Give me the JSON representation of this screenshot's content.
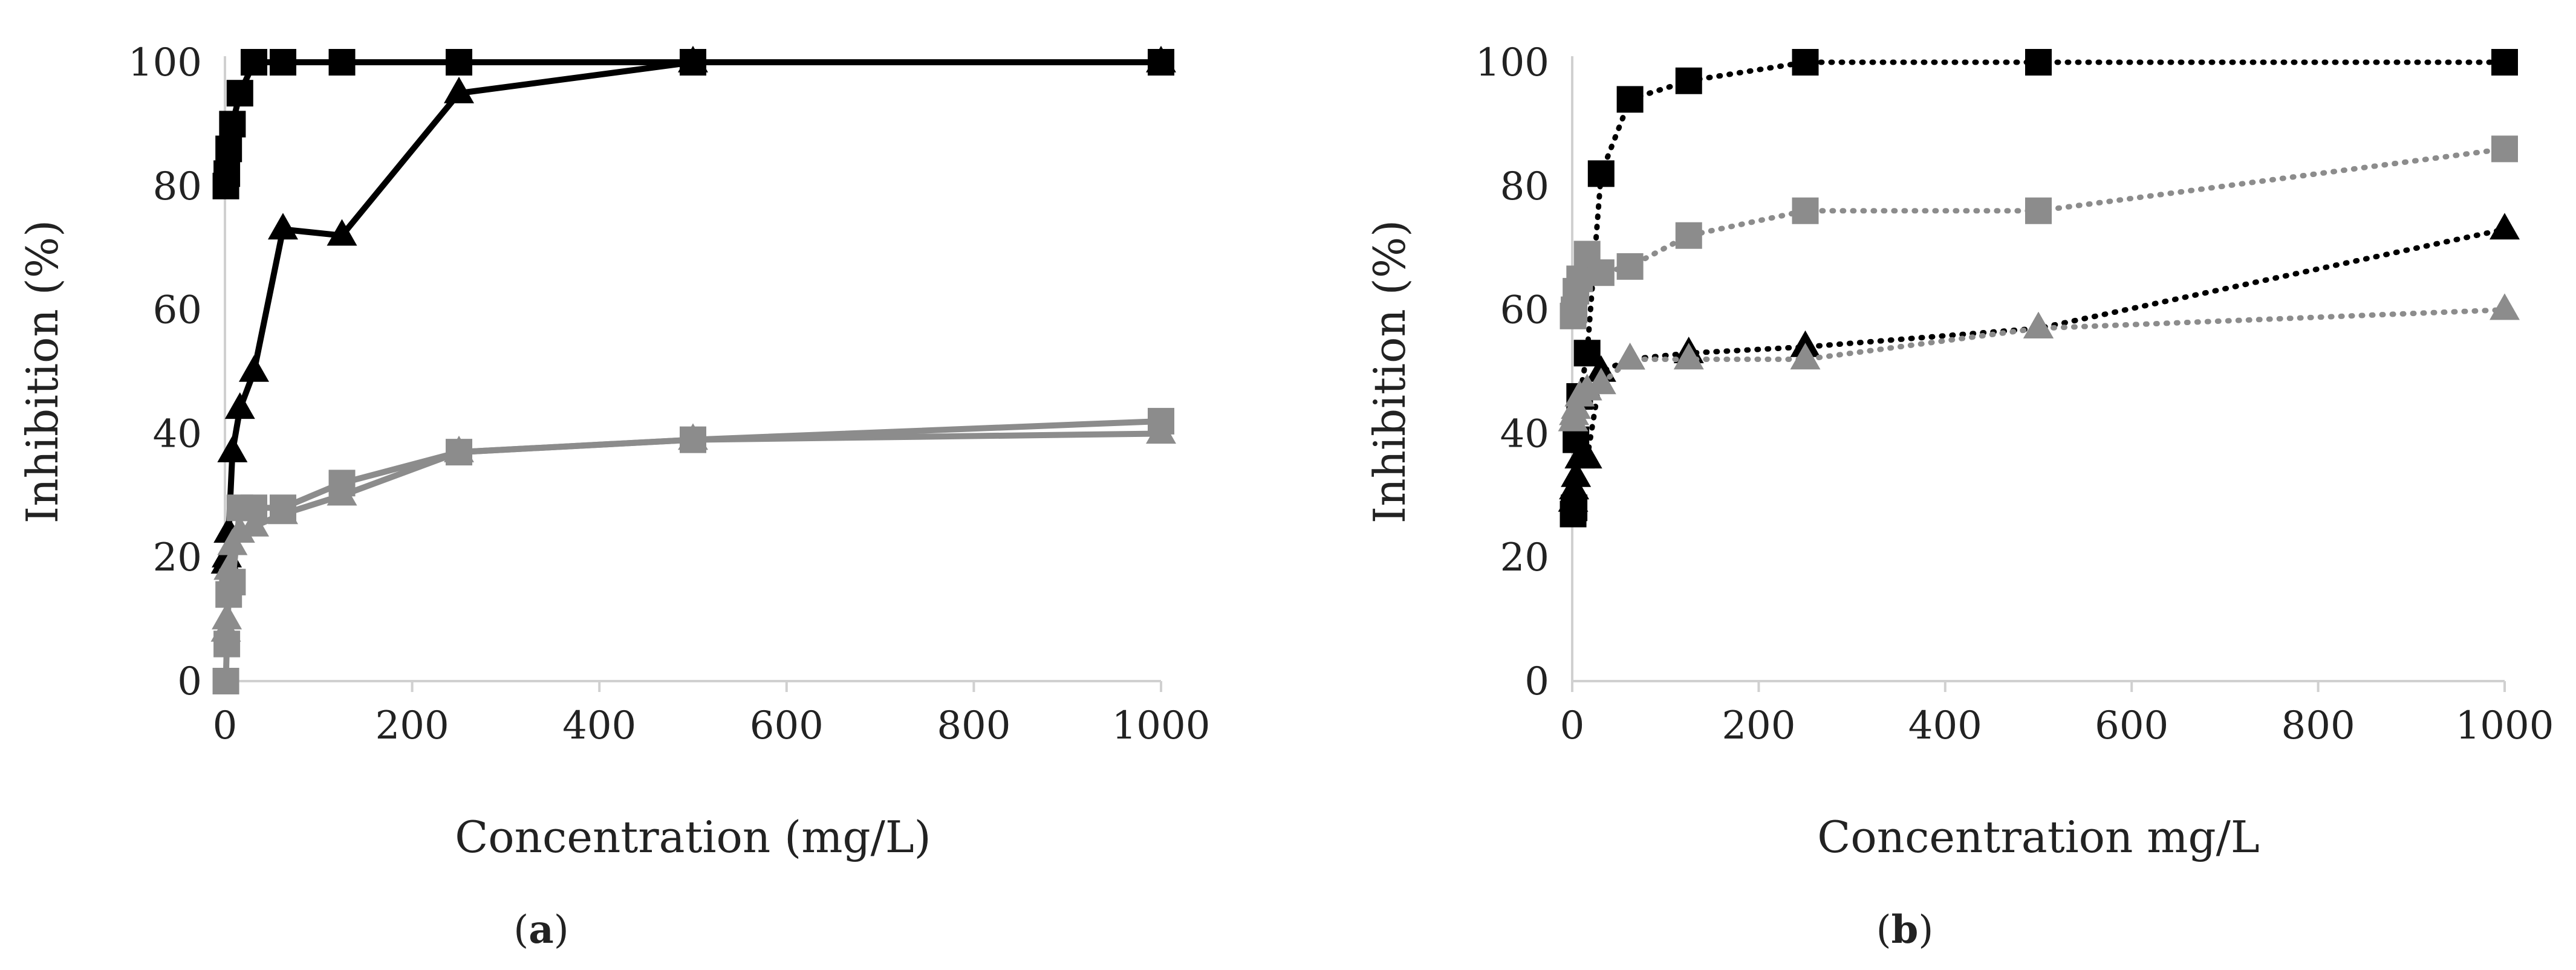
{
  "chart_data": [
    {
      "panel": "a",
      "type": "line",
      "label_prefix": "(",
      "label_letter": "a",
      "label_suffix": ")",
      "xlabel": "Concentration (mg/L)",
      "ylabel": "Inhibition (%)",
      "xlim": [
        0,
        1000
      ],
      "ylim": [
        0,
        100
      ],
      "xticks": [
        0,
        200,
        400,
        600,
        800,
        1000
      ],
      "yticks": [
        0,
        20,
        40,
        60,
        80,
        100
      ],
      "grid": false,
      "series": [
        {
          "name": "black-squares",
          "color": "#000000",
          "marker": "square",
          "dashed": false,
          "x": [
            1,
            2,
            4,
            8,
            16,
            31,
            62,
            125,
            250,
            500,
            1000
          ],
          "y": [
            80,
            82,
            86,
            90,
            95,
            100,
            100,
            100,
            100,
            100,
            100
          ]
        },
        {
          "name": "black-triangles",
          "color": "#000000",
          "marker": "triangle",
          "dashed": false,
          "x": [
            1,
            2,
            4,
            8,
            16,
            31,
            62,
            125,
            250,
            500,
            1000
          ],
          "y": [
            19,
            20,
            24,
            37,
            44,
            50,
            73,
            72,
            95,
            100,
            100
          ]
        },
        {
          "name": "gray-triangles",
          "color": "#8c8c8c",
          "marker": "triangle",
          "dashed": false,
          "x": [
            1,
            2,
            4,
            8,
            16,
            31,
            62,
            125,
            250,
            500,
            1000
          ],
          "y": [
            8,
            10,
            18,
            22,
            24,
            25,
            27,
            30,
            37,
            39,
            40
          ]
        },
        {
          "name": "gray-squares",
          "color": "#8c8c8c",
          "marker": "square",
          "dashed": false,
          "x": [
            1,
            2,
            4,
            8,
            16,
            31,
            62,
            125,
            250,
            500,
            1000
          ],
          "y": [
            0,
            6,
            14,
            16,
            28,
            28,
            28,
            32,
            37,
            39,
            42
          ]
        }
      ]
    },
    {
      "panel": "b",
      "type": "line",
      "label_prefix": "(",
      "label_letter": "b",
      "label_suffix": ")",
      "xlabel": "Concentration mg/L",
      "ylabel": "Inhibition (%)",
      "xlim": [
        0,
        1000
      ],
      "ylim": [
        0,
        100
      ],
      "xticks": [
        0,
        200,
        400,
        600,
        800,
        1000
      ],
      "yticks": [
        0,
        20,
        40,
        60,
        80,
        100
      ],
      "grid": false,
      "series": [
        {
          "name": "black-squares",
          "color": "#000000",
          "marker": "square",
          "dashed": true,
          "x": [
            1,
            2,
            4,
            8,
            16,
            31,
            62,
            125,
            250,
            500,
            1000
          ],
          "y": [
            27,
            28,
            39,
            46,
            53,
            82,
            94,
            97,
            100,
            100,
            100
          ]
        },
        {
          "name": "gray-squares",
          "color": "#8c8c8c",
          "marker": "square",
          "dashed": true,
          "x": [
            1,
            2,
            4,
            8,
            16,
            31,
            62,
            125,
            250,
            500,
            1000
          ],
          "y": [
            59,
            60,
            63,
            65,
            69,
            66,
            67,
            72,
            76,
            76,
            86
          ]
        },
        {
          "name": "black-triangles",
          "color": "#000000",
          "marker": "triangle",
          "dashed": true,
          "x": [
            1,
            2,
            4,
            8,
            16,
            31,
            62,
            125,
            250,
            500,
            1000
          ],
          "y": [
            29,
            31,
            33,
            36,
            36,
            50,
            52,
            53,
            54,
            57,
            73
          ]
        },
        {
          "name": "gray-triangles",
          "color": "#8c8c8c",
          "marker": "triangle",
          "dashed": true,
          "x": [
            1,
            2,
            4,
            8,
            16,
            31,
            62,
            125,
            250,
            500,
            1000
          ],
          "y": [
            42,
            43,
            44,
            46,
            47,
            48,
            52,
            52,
            52,
            57,
            60
          ]
        }
      ]
    }
  ]
}
